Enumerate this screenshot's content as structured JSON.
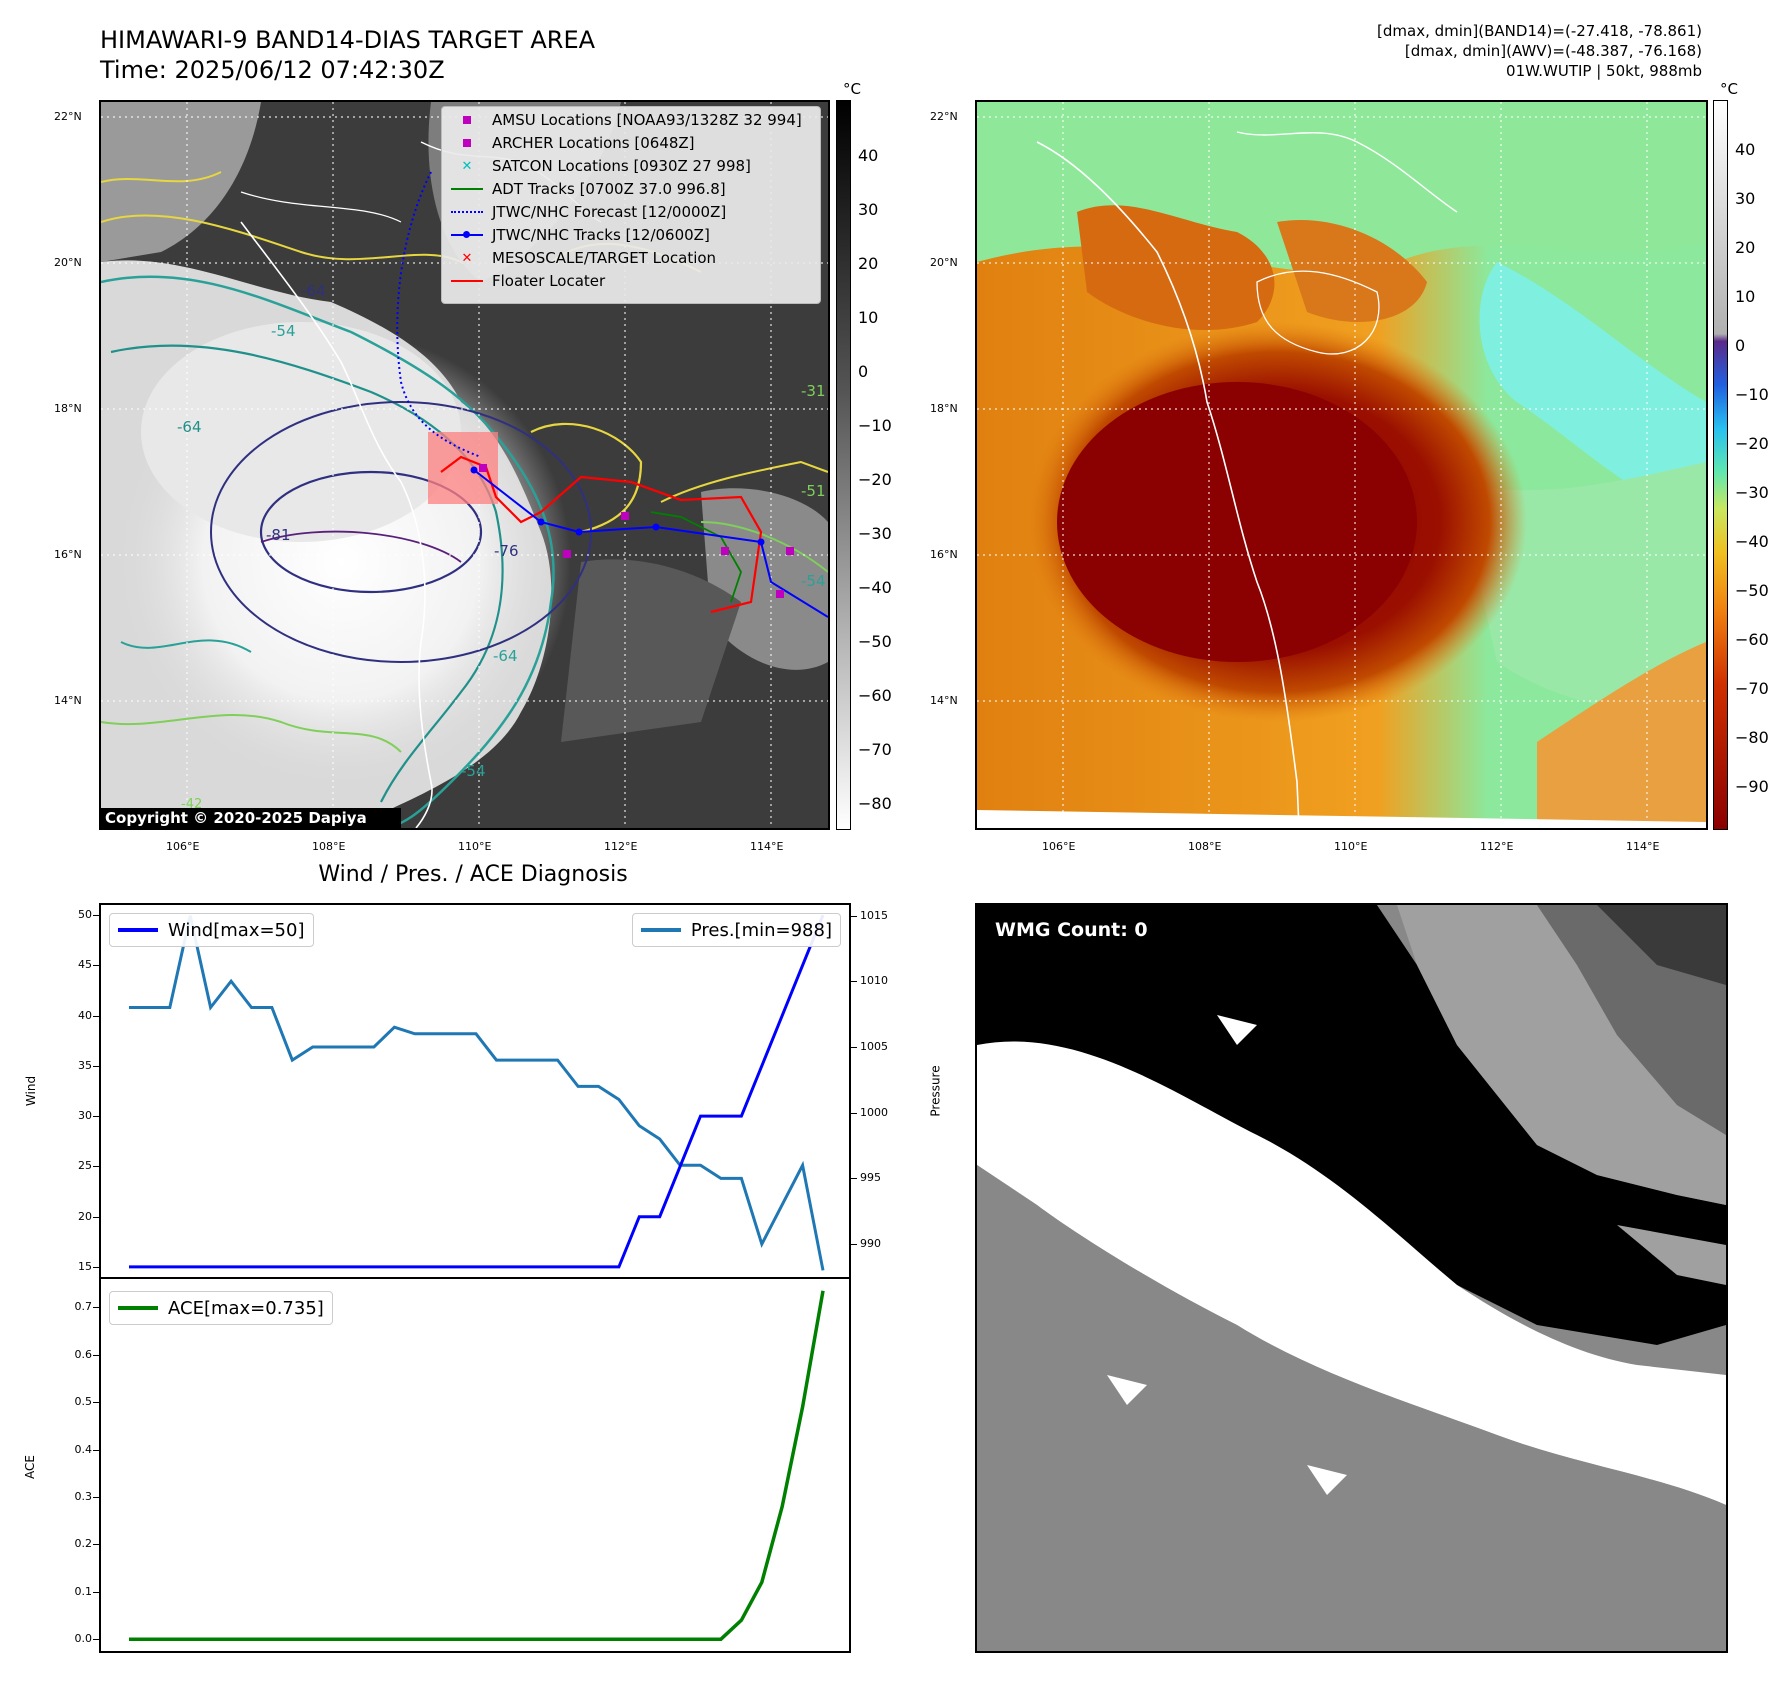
{
  "header": {
    "title_line1": "HIMAWARI-9 BAND14-DIAS TARGET AREA",
    "title_line2": "Time: 2025/06/12 07:42:30Z",
    "info_line1": "[dmax, dmin](BAND14)=(-27.418, -78.861)",
    "info_line2": "[dmax, dmin](AWV)=(-48.387, -76.168)",
    "info_line3": "01W.WUTIP | 50kt, 988mb"
  },
  "map_axes": {
    "lon_labels": [
      "106°E",
      "108°E",
      "110°E",
      "112°E",
      "114°E"
    ],
    "lat_labels": [
      "22°N",
      "20°N",
      "18°N",
      "16°N",
      "14°N"
    ]
  },
  "ir_panel": {
    "copyright": "Copyright © 2020-2025 Dapiya",
    "contour_labels": [
      "-64",
      "-64",
      "-81",
      "-76",
      "-64",
      "-54",
      "-54",
      "-42",
      "-51",
      "-54",
      "-31"
    ],
    "colorbar": {
      "unit": "°C",
      "ticks": [
        "40",
        "30",
        "20",
        "10",
        "0",
        "−10",
        "−20",
        "−30",
        "−40",
        "−50",
        "−60",
        "−70",
        "−80"
      ]
    },
    "legend": [
      {
        "label": "AMSU Locations [NOAA93/1328Z 32 994]",
        "symbol": "square",
        "color": "#bf00bf"
      },
      {
        "label": "ARCHER Locations [0648Z]",
        "symbol": "square",
        "color": "#bf00bf"
      },
      {
        "label": "SATCON Locations [0930Z 27 998]",
        "symbol": "x",
        "color": "#00bfbf"
      },
      {
        "label": "ADT Tracks [0700Z 37.0 996.8]",
        "symbol": "line",
        "color": "#008000"
      },
      {
        "label": "JTWC/NHC Forecast [12/0000Z]",
        "symbol": "dotted",
        "color": "#0000ff"
      },
      {
        "label": "JTWC/NHC Tracks [12/0600Z]",
        "symbol": "linedot",
        "color": "#0000ff"
      },
      {
        "label": "MESOSCALE/TARGET Location",
        "symbol": "x",
        "color": "#ff0000"
      },
      {
        "label": "Floater Locater",
        "symbol": "line",
        "color": "#ff0000"
      }
    ]
  },
  "wv_panel": {
    "colorbar": {
      "unit": "°C",
      "ticks": [
        "40",
        "30",
        "20",
        "10",
        "0",
        "−10",
        "−20",
        "−30",
        "−40",
        "−50",
        "−60",
        "−70",
        "−80",
        "−90"
      ]
    }
  },
  "wmg_panel": {
    "label": "WMG Count: 0"
  },
  "diagnosis": {
    "title": "Wind / Pres. / ACE Diagnosis",
    "wind_ylabel": "Wind",
    "pres_ylabel": "Pressure",
    "ace_ylabel": "ACE",
    "wind_legend": "Wind[max=50]",
    "pres_legend": "Pres.[min=988]",
    "ace_legend": "ACE[max=0.735]",
    "wind_ticks": [
      "50",
      "45",
      "40",
      "35",
      "30",
      "25",
      "20",
      "15"
    ],
    "pres_ticks": [
      "1015",
      "1010",
      "1005",
      "1000",
      "995",
      "990"
    ],
    "ace_ticks": [
      "0.7",
      "0.6",
      "0.5",
      "0.4",
      "0.3",
      "0.2",
      "0.1",
      "0.0"
    ]
  },
  "chart_data": [
    {
      "type": "line",
      "title": "Wind / Pres. / ACE Diagnosis",
      "ylabel": "Wind",
      "ylim": [
        14,
        51
      ],
      "series": [
        {
          "name": "Wind[max=50]",
          "color": "#0000ff",
          "values": [
            15,
            15,
            15,
            15,
            15,
            15,
            15,
            15,
            15,
            15,
            15,
            15,
            15,
            15,
            15,
            15,
            15,
            15,
            15,
            15,
            15,
            15,
            15,
            15,
            15,
            20,
            20,
            25,
            30,
            30,
            30,
            35,
            40,
            45,
            50
          ]
        }
      ]
    },
    {
      "type": "line",
      "ylabel": "Pressure",
      "ylim": [
        987.5,
        1015.8
      ],
      "series": [
        {
          "name": "Pres.[min=988]",
          "color": "#1f77b4",
          "values": [
            1008,
            1008,
            1008,
            1015,
            1008,
            1010,
            1008,
            1008,
            1004,
            1005,
            1005,
            1005,
            1005,
            1006.5,
            1006,
            1006,
            1006,
            1006,
            1004,
            1004,
            1004,
            1004,
            1002,
            1002,
            1001,
            999,
            998,
            996,
            996,
            995,
            995,
            990,
            993,
            996,
            988
          ]
        }
      ]
    },
    {
      "type": "line",
      "ylabel": "ACE",
      "ylim": [
        -0.025,
        0.76
      ],
      "series": [
        {
          "name": "ACE[max=0.735]",
          "color": "#008000",
          "values": [
            0,
            0,
            0,
            0,
            0,
            0,
            0,
            0,
            0,
            0,
            0,
            0,
            0,
            0,
            0,
            0,
            0,
            0,
            0,
            0,
            0,
            0,
            0,
            0,
            0,
            0,
            0,
            0,
            0,
            0,
            0.04,
            0.12,
            0.28,
            0.49,
            0.735
          ]
        }
      ]
    }
  ]
}
